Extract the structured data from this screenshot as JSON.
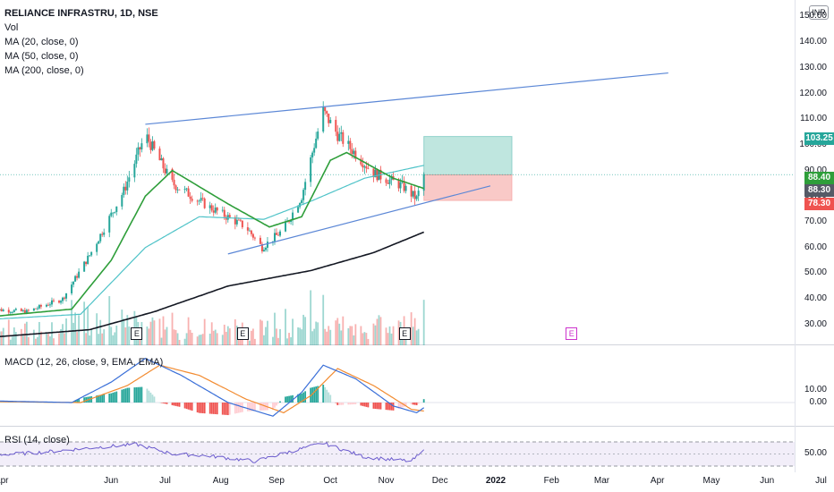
{
  "legend": {
    "title": "RELIANCE INFRASTRU, 1D, NSE",
    "vol": "Vol",
    "ma20": "MA (20, close, 0)",
    "ma50": "MA (50, close, 0)",
    "ma200": "MA (200, close, 0)"
  },
  "currency_label": "INR",
  "price_ticks": [
    "150.00",
    "140.00",
    "130.00",
    "120.00",
    "110.00",
    "100.00",
    "90.00",
    "80.00",
    "70.00",
    "60.00",
    "50.00",
    "40.00",
    "30.00"
  ],
  "price_tags": {
    "target": "103.25",
    "ma_value": "88.40",
    "last_price": "88.30",
    "stop": "78.30"
  },
  "macd": {
    "title": "MACD (12, 26, close, 9, EMA, EMA)",
    "ticks": [
      "10.00",
      "0.00"
    ]
  },
  "rsi": {
    "title": "RSI (14, close)",
    "ticks": [
      "50.00"
    ]
  },
  "x_ticks": [
    "Apr",
    "Jun",
    "Jul",
    "Aug",
    "Sep",
    "Oct",
    "Nov",
    "Dec",
    "2022",
    "Feb",
    "Mar",
    "Apr",
    "May",
    "Jun",
    "Jul"
  ],
  "x_ticks_bold": [
    "2022"
  ],
  "earnings_marker": "E",
  "colors": {
    "up": "#26a69a",
    "down": "#ef5350",
    "ma20": "#2e9e3a",
    "ma50": "#4fc3c8",
    "ma200": "#131722",
    "trendline": "#5b87d6",
    "macd": "#3a6fd8",
    "signal": "#f28b30",
    "rsi": "#6a5acd",
    "target_zone": "#bfe6df",
    "stop_zone": "#f9c9c7",
    "earn_future": "#cc33cc"
  },
  "chart_data": {
    "type": "candlestick",
    "title": "RELIANCE INFRASTRU, 1D, NSE",
    "ylim": [
      25,
      153
    ],
    "x_range": [
      "2021-03-25",
      "2022-07-15"
    ],
    "price_anchors": [
      [
        "2021-03-25",
        36
      ],
      [
        "2021-04-15",
        35
      ],
      [
        "2021-05-05",
        40
      ],
      [
        "2021-05-20",
        57
      ],
      [
        "2021-06-08",
        82
      ],
      [
        "2021-06-20",
        104
      ],
      [
        "2021-07-05",
        85
      ],
      [
        "2021-07-25",
        76
      ],
      [
        "2021-08-15",
        68
      ],
      [
        "2021-08-24",
        60
      ],
      [
        "2021-09-05",
        67
      ],
      [
        "2021-09-15",
        80
      ],
      [
        "2021-09-22",
        100
      ],
      [
        "2021-09-27",
        113
      ],
      [
        "2021-10-05",
        104
      ],
      [
        "2021-10-25",
        89
      ],
      [
        "2021-11-10",
        84
      ],
      [
        "2021-11-18",
        79
      ],
      [
        "2021-11-22",
        88.3
      ]
    ],
    "ma20_anchors": [
      [
        "2021-03-25",
        33
      ],
      [
        "2021-05-10",
        36
      ],
      [
        "2021-06-01",
        55
      ],
      [
        "2021-06-20",
        80
      ],
      [
        "2021-07-05",
        90
      ],
      [
        "2021-08-05",
        77
      ],
      [
        "2021-08-28",
        68
      ],
      [
        "2021-09-15",
        72
      ],
      [
        "2021-10-01",
        94
      ],
      [
        "2021-10-10",
        97
      ],
      [
        "2021-11-05",
        87
      ],
      [
        "2021-11-22",
        83
      ]
    ],
    "ma50_anchors": [
      [
        "2021-03-25",
        32
      ],
      [
        "2021-05-15",
        34
      ],
      [
        "2021-06-20",
        60
      ],
      [
        "2021-07-20",
        72
      ],
      [
        "2021-08-25",
        71
      ],
      [
        "2021-09-20",
        78
      ],
      [
        "2021-10-20",
        87
      ],
      [
        "2021-11-22",
        92
      ]
    ],
    "ma200_anchors": [
      [
        "2021-03-25",
        25
      ],
      [
        "2021-05-20",
        28
      ],
      [
        "2021-06-25",
        35
      ],
      [
        "2021-08-05",
        45
      ],
      [
        "2021-09-20",
        51
      ],
      [
        "2021-10-25",
        58
      ],
      [
        "2021-11-22",
        66
      ]
    ],
    "trendlines": [
      {
        "from": [
          "2021-06-20",
          108
        ],
        "to": [
          "2022-04-07",
          128
        ]
      },
      {
        "from": [
          "2021-08-05",
          57.5
        ],
        "to": [
          "2021-12-29",
          84
        ]
      }
    ],
    "position": {
      "start": "2021-11-22",
      "end": "2022-01-10",
      "entry": 88.3,
      "target": 103.25,
      "stop": 78.3
    },
    "earnings_dates": [
      "2021-06-15",
      "2021-08-13",
      "2021-11-11",
      "2022-02-12"
    ],
    "macd_anchors": [
      [
        "2021-03-25",
        0.5
      ],
      [
        "2021-05-10",
        0
      ],
      [
        "2021-06-01",
        6
      ],
      [
        "2021-06-20",
        13
      ],
      [
        "2021-07-10",
        8
      ],
      [
        "2021-08-05",
        0
      ],
      [
        "2021-08-30",
        -4
      ],
      [
        "2021-09-15",
        3
      ],
      [
        "2021-09-27",
        11
      ],
      [
        "2021-10-15",
        7
      ],
      [
        "2021-11-05",
        -1
      ],
      [
        "2021-11-18",
        -3
      ],
      [
        "2021-11-22",
        -1.5
      ]
    ],
    "signal_anchors": [
      [
        "2021-03-25",
        0.3
      ],
      [
        "2021-05-15",
        0
      ],
      [
        "2021-06-10",
        5
      ],
      [
        "2021-06-28",
        11
      ],
      [
        "2021-07-20",
        8
      ],
      [
        "2021-08-15",
        1
      ],
      [
        "2021-09-05",
        -3
      ],
      [
        "2021-09-20",
        2
      ],
      [
        "2021-10-05",
        10
      ],
      [
        "2021-10-25",
        5
      ],
      [
        "2021-11-15",
        -2
      ],
      [
        "2021-11-22",
        -2.5
      ]
    ],
    "rsi_anchors": [
      [
        "2021-03-25",
        48
      ],
      [
        "2021-04-20",
        52
      ],
      [
        "2021-05-20",
        60
      ],
      [
        "2021-06-15",
        66
      ],
      [
        "2021-07-05",
        50
      ],
      [
        "2021-07-25",
        47
      ],
      [
        "2021-08-20",
        38
      ],
      [
        "2021-09-10",
        55
      ],
      [
        "2021-09-27",
        68
      ],
      [
        "2021-10-20",
        45
      ],
      [
        "2021-11-15",
        38
      ],
      [
        "2021-11-22",
        55
      ]
    ],
    "rsi_bands": [
      30,
      70
    ]
  }
}
